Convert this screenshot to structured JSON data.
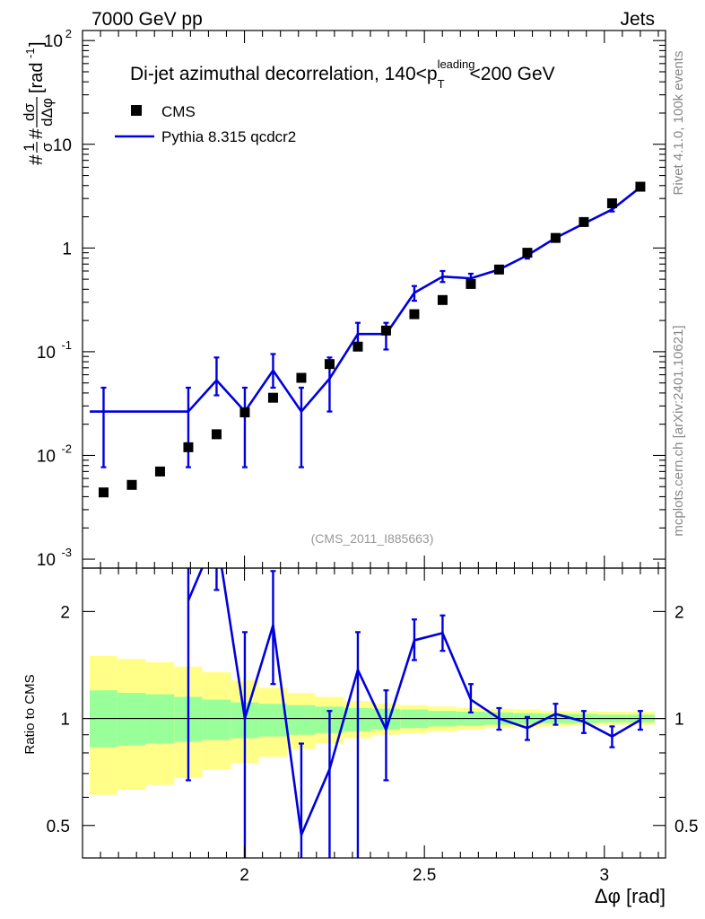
{
  "header": {
    "energy": "7000 GeV pp",
    "process": "Jets"
  },
  "side_labels": {
    "rivet": "Rivet 4.1.0,  100k events",
    "mcplots": "mcplots.cern.ch [arXiv:2401.10621]"
  },
  "analysis_id": "(CMS_2011_I885663)",
  "colors": {
    "data": "#000000",
    "mc": "#0000dd",
    "band_inner": "#99ff99",
    "band_outer": "#ffff88",
    "ref_line": "#000000",
    "side_text": "#888888"
  },
  "chart_data": [
    {
      "name": "main-panel",
      "type": "scatter",
      "title_prefix": "Di-jet azimuthal decorrelation, 140<p",
      "title_sup": "leading",
      "title_sub": "T",
      "title_suffix": "<200 GeV",
      "ylabel": "#frac{1}{#sigma}#frac{d#sigma}{d#Delta#phi} [rad^{-1}]",
      "ylabel_parts": {
        "prefix": "#",
        "num1": "1",
        "den1": "σ",
        "mid": "#",
        "num2": "dσ",
        "den2": "dΔφ",
        "unit": "[rad",
        "unit_exp": "-1",
        "unit_close": "]"
      },
      "yscale": "log",
      "xlim": [
        1.55,
        3.17
      ],
      "ylim": [
        0.00082,
        125
      ],
      "y_ticks": [
        {
          "value": 0.001,
          "base": "10",
          "exp": "-3"
        },
        {
          "value": 0.01,
          "base": "10",
          "exp": "-2"
        },
        {
          "value": 0.1,
          "base": "10",
          "exp": "-1"
        },
        {
          "value": 1,
          "base": "1",
          "exp": ""
        },
        {
          "value": 10,
          "base": "10",
          "exp": ""
        },
        {
          "value": 100,
          "base": "10",
          "exp": "2"
        }
      ],
      "legend": [
        {
          "label": "CMS",
          "kind": "marker"
        },
        {
          "label": "Pythia 8.315 qcdcr2",
          "kind": "line"
        }
      ],
      "series": [
        {
          "name": "CMS",
          "x": [
            1.6085,
            1.687,
            1.7655,
            1.844,
            1.9225,
            2.001,
            2.0795,
            2.158,
            2.2365,
            2.315,
            2.3935,
            2.472,
            2.5505,
            2.629,
            2.7075,
            2.786,
            2.8645,
            2.943,
            3.0215,
            3.1
          ],
          "y": [
            0.0044,
            0.0052,
            0.007,
            0.012,
            0.016,
            0.026,
            0.036,
            0.056,
            0.076,
            0.112,
            0.16,
            0.23,
            0.315,
            0.45,
            0.62,
            0.9,
            1.25,
            1.78,
            2.7,
            3.9
          ]
        },
        {
          "name": "Pythia 8.315 qcdcr2",
          "bin_edges": [
            1.57,
            1.844,
            1.9225,
            2.001,
            2.0795,
            2.158,
            2.2365,
            2.315,
            2.3935,
            2.472,
            2.5505,
            2.629,
            2.7075,
            2.786,
            2.8645,
            2.943,
            3.0215,
            3.1
          ],
          "x": [
            1.844,
            1.9225,
            2.001,
            2.0795,
            2.158,
            2.2365,
            2.315,
            2.3935,
            2.472,
            2.5505,
            2.629,
            2.7075,
            2.786,
            2.8645,
            2.943,
            3.0215,
            3.1
          ],
          "y": [
            0.0265,
            0.053,
            0.0265,
            0.066,
            0.0265,
            0.055,
            0.148,
            0.148,
            0.37,
            0.53,
            0.51,
            0.62,
            0.85,
            1.25,
            1.72,
            2.35,
            3.85
          ],
          "err_low": [
            0.0077,
            0.038,
            0.0077,
            0.045,
            0.0077,
            0.0265,
            0.105,
            0.105,
            0.31,
            0.47,
            0.46,
            0.57,
            0.79,
            1.18,
            1.64,
            2.25,
            3.75
          ],
          "err_high": [
            0.045,
            0.088,
            0.045,
            0.095,
            0.045,
            0.088,
            0.19,
            0.19,
            0.43,
            0.6,
            0.565,
            0.675,
            0.91,
            1.33,
            1.81,
            2.46,
            3.98
          ]
        }
      ]
    },
    {
      "name": "ratio-panel",
      "type": "line",
      "ylabel": "Ratio to CMS",
      "xlabel": "Δφ [rad]",
      "yscale": "log",
      "xlim": [
        1.55,
        3.17
      ],
      "ylim": [
        0.405,
        2.65
      ],
      "y_ticks": [
        0.5,
        1,
        2
      ],
      "y_tick_labels": [
        "0.5",
        "1",
        "2"
      ],
      "x_ticks": [
        2,
        2.5,
        3
      ],
      "x_tick_labels": [
        "2",
        "2.5",
        "3"
      ],
      "band": {
        "bin_edges": [
          1.57,
          1.647,
          1.726,
          1.805,
          1.883,
          1.962,
          2.04,
          2.119,
          2.197,
          2.276,
          2.354,
          2.433,
          2.511,
          2.59,
          2.668,
          2.747,
          2.825,
          2.904,
          2.982,
          3.061,
          3.14
        ],
        "inner_low": [
          0.83,
          0.84,
          0.85,
          0.86,
          0.87,
          0.88,
          0.89,
          0.9,
          0.91,
          0.92,
          0.93,
          0.94,
          0.95,
          0.955,
          0.96,
          0.965,
          0.97,
          0.97,
          0.975,
          0.975
        ],
        "inner_high": [
          1.2,
          1.18,
          1.17,
          1.15,
          1.13,
          1.11,
          1.1,
          1.09,
          1.08,
          1.07,
          1.065,
          1.06,
          1.05,
          1.045,
          1.04,
          1.035,
          1.03,
          1.03,
          1.025,
          1.025
        ],
        "outer_low": [
          0.61,
          0.63,
          0.65,
          0.68,
          0.72,
          0.75,
          0.78,
          0.82,
          0.85,
          0.88,
          0.9,
          0.91,
          0.92,
          0.93,
          0.94,
          0.945,
          0.95,
          0.955,
          0.96,
          0.96
        ],
        "outer_high": [
          1.5,
          1.47,
          1.44,
          1.4,
          1.35,
          1.28,
          1.22,
          1.18,
          1.15,
          1.12,
          1.1,
          1.09,
          1.08,
          1.07,
          1.065,
          1.06,
          1.05,
          1.05,
          1.045,
          1.045
        ]
      },
      "series": [
        {
          "name": "Pythia 8.315 qcdcr2 / CMS",
          "x": [
            1.844,
            1.9225,
            2.001,
            2.0795,
            2.158,
            2.2365,
            2.315,
            2.3935,
            2.472,
            2.5505,
            2.629,
            2.7075,
            2.786,
            2.8645,
            2.943,
            3.0215,
            3.1
          ],
          "y": [
            2.15,
            3.3,
            1.0,
            1.83,
            0.47,
            0.72,
            1.37,
            0.93,
            1.66,
            1.74,
            1.13,
            1.0,
            0.94,
            1.03,
            0.98,
            0.89,
            0.99
          ],
          "err_low": [
            0.67,
            2.3,
            0.3,
            1.25,
            0.3,
            0.3,
            0.3,
            0.67,
            1.46,
            1.55,
            1.04,
            0.93,
            0.87,
            0.96,
            0.91,
            0.83,
            0.93
          ],
          "err_high": [
            3.7,
            5.5,
            1.75,
            2.6,
            0.85,
            1.05,
            1.75,
            1.2,
            1.9,
            1.95,
            1.25,
            1.07,
            1.01,
            1.1,
            1.05,
            0.95,
            1.05
          ]
        }
      ]
    }
  ]
}
